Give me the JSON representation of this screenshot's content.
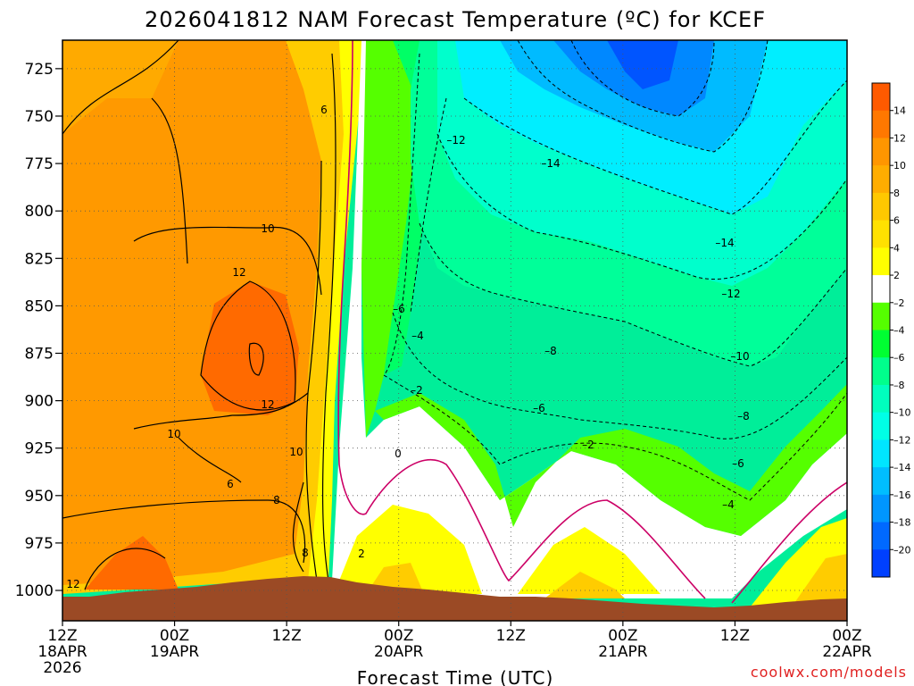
{
  "chart_data": {
    "type": "heatmap",
    "title": "2026041812 NAM Forecast Temperature (ºC) for KCEF",
    "xlabel": "Forecast Time (UTC)",
    "ylabel": "",
    "x_ticks": [
      {
        "label": "12Z",
        "sub": [
          "18APR",
          "2026"
        ],
        "hour": 0
      },
      {
        "label": "00Z",
        "sub": [
          "19APR"
        ],
        "hour": 12
      },
      {
        "label": "12Z",
        "sub": [],
        "hour": 24
      },
      {
        "label": "00Z",
        "sub": [
          "20APR"
        ],
        "hour": 36
      },
      {
        "label": "12Z",
        "sub": [],
        "hour": 48
      },
      {
        "label": "00Z",
        "sub": [
          "21APR"
        ],
        "hour": 60
      },
      {
        "label": "12Z",
        "sub": [],
        "hour": 72
      },
      {
        "label": "00Z",
        "sub": [
          "22APR"
        ],
        "hour": 84
      }
    ],
    "xlim": [
      0,
      84
    ],
    "y_ticks": [
      725,
      750,
      775,
      800,
      825,
      850,
      875,
      900,
      925,
      950,
      975,
      1000
    ],
    "ylim": [
      1016,
      710
    ],
    "colorbar": {
      "ticks": [
        "14",
        "12",
        "10",
        "8",
        "6",
        "4",
        "2",
        "–2",
        "–4",
        "–6",
        "–8",
        "–10",
        "–12",
        "–14",
        "–16",
        "–18",
        "–20"
      ],
      "colors": [
        "#ff5a00",
        "#ff7800",
        "#ff9600",
        "#ffad00",
        "#ffc800",
        "#ffe100",
        "#ffff00",
        "#ffffff",
        "#55ff00",
        "#00ff32",
        "#00ff8c",
        "#00ffbe",
        "#00ffe6",
        "#00e6ff",
        "#00beff",
        "#0096ff",
        "#0069ff",
        "#0040ff"
      ]
    },
    "contour_labels": [
      "6",
      "10",
      "12",
      "12",
      "10",
      "10",
      "6",
      "8",
      "8",
      "2",
      "0",
      "12",
      "–12",
      "–14",
      "–14",
      "–12",
      "–6",
      "–4",
      "–2",
      "–8",
      "–6",
      "–2",
      "–10",
      "–8",
      "–6",
      "–4"
    ],
    "colors": {
      "warm_dark": "#ff6600",
      "warm_mid": "#ff9900",
      "warm_light": "#ffbb00",
      "yellow": "#ffff00",
      "white": "#ffffff",
      "green_1": "#55ff00",
      "green_2": "#00ff55",
      "green_3": "#00ff99",
      "teal": "#00ffcc",
      "cyan": "#00ffee",
      "sky": "#00ddff",
      "blue_1": "#00bbff",
      "blue_2": "#0099ff",
      "blue_3": "#0066ff",
      "ground": "#9b4a25",
      "zero_line": "#cc0066"
    }
  },
  "credit": "coolwx.com/models"
}
